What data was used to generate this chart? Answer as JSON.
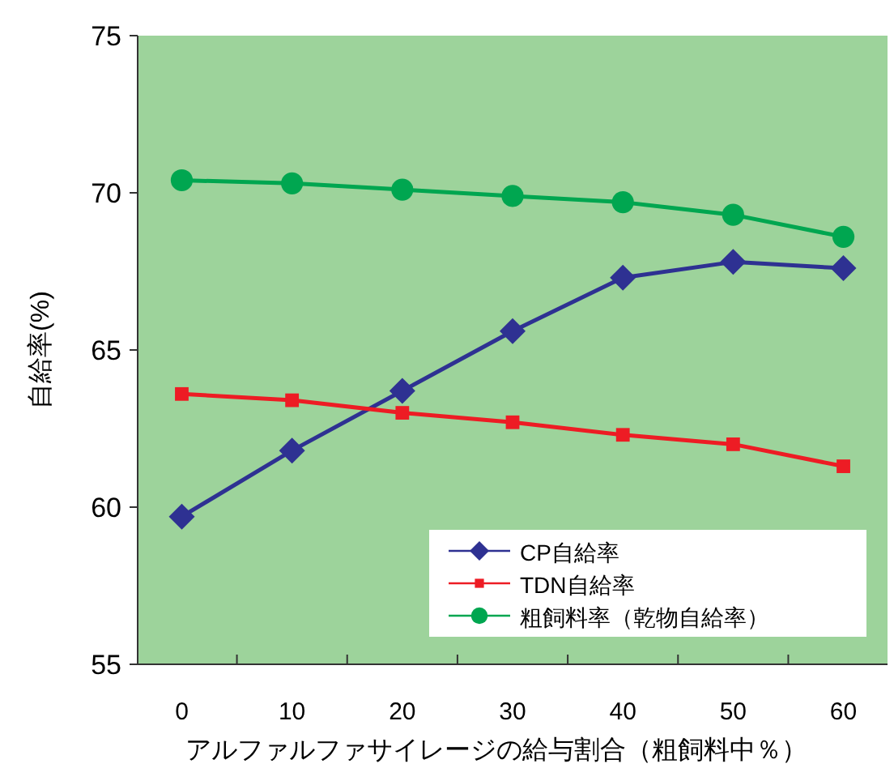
{
  "chart_data": {
    "type": "line",
    "xlabel": "アルファルファサイレージの給与割合（粗飼料中％）",
    "ylabel": "自給率(%)",
    "categories": [
      "0",
      "10",
      "20",
      "30",
      "40",
      "50",
      "60"
    ],
    "ylim": [
      55,
      75
    ],
    "yticks": [
      55,
      60,
      65,
      70,
      75
    ],
    "grid": false,
    "legend": "bottom right",
    "series": [
      {
        "name": "CP自給率",
        "color": "#2e3192",
        "marker": "diamond",
        "values": [
          59.7,
          61.8,
          63.7,
          65.6,
          67.3,
          67.8,
          67.6
        ]
      },
      {
        "name": "TDN自給率",
        "color": "#ed1c24",
        "marker": "square",
        "values": [
          63.6,
          63.4,
          63.0,
          62.7,
          62.3,
          62.0,
          61.3
        ]
      },
      {
        "name": "粗飼料率（乾物自給率）",
        "color": "#00a650",
        "marker": "circle",
        "values": [
          70.4,
          70.3,
          70.1,
          69.9,
          69.7,
          69.3,
          68.6
        ]
      }
    ]
  }
}
